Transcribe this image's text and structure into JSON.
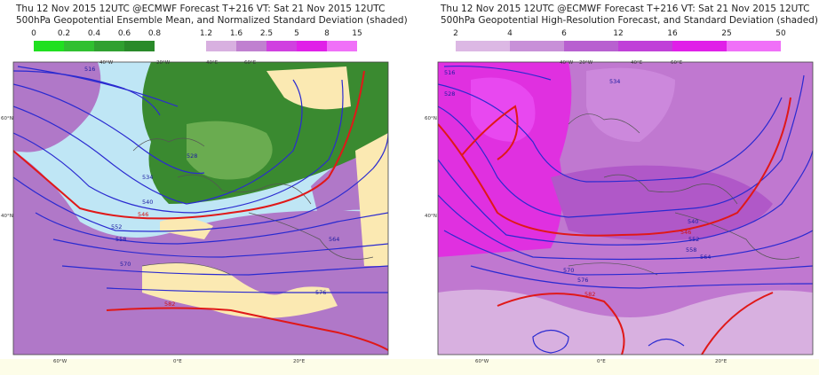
{
  "left_panel": {
    "title_line1": "Thu 12 Nov 2015 12UTC @ECMWF Forecast T+216 VT: Sat 21 Nov 2015 12UTC",
    "title_line2": "500hPa Geopotential Ensemble Mean, and Normalized Standard Deviation (shaded)",
    "legend_labels": [
      "0",
      "0.2",
      "0.4",
      "0.6",
      "0.8",
      "1.2",
      "1.6",
      "2.5",
      "5",
      "8",
      "15"
    ],
    "contour_labels": [
      "516",
      "528",
      "534",
      "540",
      "546",
      "552",
      "558",
      "564",
      "570",
      "576",
      "582"
    ],
    "lon_labels": [
      "60°W",
      "40°W",
      "20°W",
      "0°E",
      "20°E",
      "40°E",
      "60°E"
    ],
    "lat_labels": [
      "60°N",
      "40°N"
    ]
  },
  "right_panel": {
    "title_line1": "Thu 12 Nov 2015 12UTC @ECMWF Forecast T+216 VT: Sat 21 Nov 2015 12UTC",
    "title_line2": "500hPa Geopotential High-Resolution Forecast, and Standard Deviation (shaded)",
    "legend_labels": [
      "2",
      "4",
      "6",
      "12",
      "16",
      "25",
      "50"
    ],
    "contour_labels": [
      "516",
      "528",
      "534",
      "540",
      "546",
      "552",
      "558",
      "564",
      "570",
      "576",
      "582"
    ],
    "lon_labels": [
      "60°W",
      "40°W",
      "20°W",
      "0°E",
      "20°E",
      "40°E",
      "60°E"
    ],
    "lat_labels": [
      "60°N",
      "40°N"
    ]
  }
}
